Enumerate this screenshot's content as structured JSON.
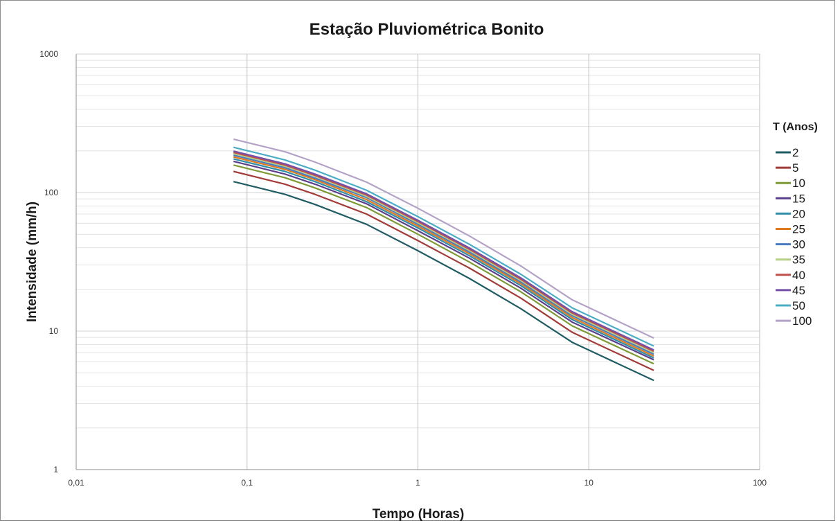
{
  "chart_data": {
    "type": "line",
    "title": "Estação Pluviométrica Bonito",
    "xlabel": "Tempo (Horas)",
    "ylabel": "Intensidade (mm/h)",
    "x_scale": "log",
    "y_scale": "log",
    "xlim": [
      0.01,
      100
    ],
    "ylim": [
      1,
      1000
    ],
    "x_ticks": [
      "0,01",
      "0,1",
      "1",
      "10",
      "100"
    ],
    "y_ticks": [
      "1",
      "10",
      "100",
      "1000"
    ],
    "x_tick_values": [
      0.01,
      0.1,
      1,
      10,
      100
    ],
    "y_tick_values": [
      1,
      10,
      100,
      1000
    ],
    "grid": true,
    "legend_title": "T (Anos)",
    "legend_position": "right",
    "x": [
      0.0833,
      0.1667,
      0.25,
      0.5,
      1,
      2,
      4,
      8,
      24
    ],
    "series": [
      {
        "name": "2",
        "color": "#1f5c63",
        "values": [
          120,
          97,
          82,
          59,
          38,
          24,
          14.5,
          8.3,
          4.4
        ]
      },
      {
        "name": "5",
        "color": "#a33b38",
        "values": [
          142,
          115,
          97,
          70,
          45,
          28.5,
          17.3,
          9.8,
          5.2
        ]
      },
      {
        "name": "10",
        "color": "#7d9a36",
        "values": [
          158,
          128,
          108,
          78,
          50,
          31.5,
          19.2,
          10.9,
          5.8
        ]
      },
      {
        "name": "15",
        "color": "#5b3f8a",
        "values": [
          168,
          136,
          115,
          83,
          53,
          33.6,
          20.4,
          11.6,
          6.2
        ]
      },
      {
        "name": "20",
        "color": "#2f8ea8",
        "values": [
          175,
          142,
          120,
          86,
          55.5,
          35,
          21.3,
          12.1,
          6.4
        ]
      },
      {
        "name": "25",
        "color": "#e07a1f",
        "values": [
          181,
          147,
          124,
          89,
          57.3,
          36.2,
          22,
          12.5,
          6.6
        ]
      },
      {
        "name": "30",
        "color": "#4a7dbf",
        "values": [
          186,
          151,
          127,
          92,
          59,
          37.2,
          22.6,
          12.9,
          6.8
        ]
      },
      {
        "name": "35",
        "color": "#b5cf87",
        "values": [
          191,
          155,
          131,
          94,
          60.5,
          38.2,
          23.2,
          13.2,
          7.0
        ]
      },
      {
        "name": "40",
        "color": "#c0504d",
        "values": [
          195,
          158,
          133,
          96,
          61.8,
          39,
          23.7,
          13.5,
          7.15
        ]
      },
      {
        "name": "45",
        "color": "#7450a8",
        "values": [
          199,
          161,
          136,
          98,
          63,
          39.8,
          24.2,
          13.8,
          7.3
        ]
      },
      {
        "name": "50",
        "color": "#4bacc6",
        "values": [
          212,
          172,
          145,
          104,
          67,
          42.3,
          25.7,
          14.7,
          7.8
        ]
      },
      {
        "name": "100",
        "color": "#b3a2c7",
        "values": [
          243,
          197,
          166,
          119,
          77,
          48.6,
          29.5,
          16.8,
          8.9
        ]
      }
    ]
  }
}
